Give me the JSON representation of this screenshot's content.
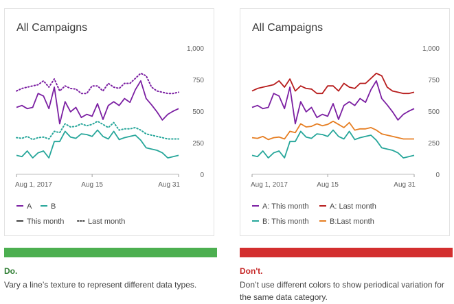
{
  "chart_data": [
    {
      "type": "line",
      "title": "All Campaigns",
      "x_tick_labels": [
        "Aug 1, 2017",
        "Aug 15",
        "Aug 31"
      ],
      "x_tick_days": [
        1,
        15,
        31
      ],
      "y_ticks": [
        0,
        250,
        500,
        750,
        1000
      ],
      "y_tick_labels": [
        "0",
        "250",
        "500",
        "750",
        "1,000"
      ],
      "ylim": [
        0,
        1000
      ],
      "xlim": [
        1,
        31
      ],
      "grid": false,
      "x": [
        1,
        2,
        3,
        4,
        5,
        6,
        7,
        8,
        9,
        10,
        11,
        12,
        13,
        14,
        15,
        16,
        17,
        18,
        19,
        20,
        21,
        22,
        23,
        24,
        25,
        26,
        27,
        28,
        29,
        30,
        31
      ],
      "legend_rows": [
        [
          {
            "label": "A",
            "color": "#7b1fa2",
            "dash": "solid"
          },
          {
            "label": "B",
            "color": "#26a69a",
            "dash": "solid"
          }
        ],
        [
          {
            "label": "This month",
            "color": "#424242",
            "dash": "solid"
          },
          {
            "label": "Last month",
            "color": "#424242",
            "dash": "dotted"
          }
        ]
      ],
      "series": [
        {
          "name": "A: This month",
          "color": "#7b1fa2",
          "dash": "solid",
          "values": [
            530,
            545,
            520,
            530,
            640,
            620,
            520,
            690,
            400,
            575,
            495,
            530,
            450,
            475,
            460,
            560,
            435,
            545,
            575,
            545,
            600,
            570,
            670,
            740,
            600,
            550,
            495,
            430,
            475,
            500,
            520
          ]
        },
        {
          "name": "A: Last month",
          "color": "#7b1fa2",
          "dash": "dotted",
          "values": [
            660,
            680,
            690,
            700,
            710,
            740,
            690,
            755,
            660,
            700,
            680,
            675,
            640,
            640,
            700,
            700,
            660,
            720,
            690,
            680,
            720,
            720,
            760,
            800,
            780,
            690,
            660,
            650,
            640,
            640,
            650
          ]
        },
        {
          "name": "B: This month",
          "color": "#26a69a",
          "dash": "solid",
          "values": [
            150,
            140,
            185,
            130,
            170,
            185,
            130,
            260,
            260,
            340,
            295,
            285,
            320,
            315,
            300,
            350,
            300,
            280,
            340,
            275,
            290,
            300,
            310,
            270,
            210,
            200,
            190,
            170,
            130,
            140,
            150
          ]
        },
        {
          "name": "B: Last month",
          "color": "#26a69a",
          "dash": "dotted",
          "values": [
            290,
            285,
            300,
            275,
            290,
            295,
            280,
            340,
            330,
            400,
            375,
            380,
            400,
            385,
            395,
            420,
            395,
            370,
            410,
            350,
            360,
            360,
            370,
            350,
            320,
            310,
            300,
            290,
            280,
            280,
            280
          ]
        }
      ]
    },
    {
      "type": "line",
      "title": "All Campaigns",
      "x_tick_labels": [
        "Aug 1, 2017",
        "Aug 15",
        "Aug 31"
      ],
      "x_tick_days": [
        1,
        15,
        31
      ],
      "y_ticks": [
        0,
        250,
        500,
        750,
        1000
      ],
      "y_tick_labels": [
        "0",
        "250",
        "500",
        "750",
        "1,000"
      ],
      "ylim": [
        0,
        1000
      ],
      "xlim": [
        1,
        31
      ],
      "grid": false,
      "x": [
        1,
        2,
        3,
        4,
        5,
        6,
        7,
        8,
        9,
        10,
        11,
        12,
        13,
        14,
        15,
        16,
        17,
        18,
        19,
        20,
        21,
        22,
        23,
        24,
        25,
        26,
        27,
        28,
        29,
        30,
        31
      ],
      "legend_rows": [
        [
          {
            "label": "A: This month",
            "color": "#7b1fa2",
            "dash": "solid"
          },
          {
            "label": "A: Last month",
            "color": "#b71c1c",
            "dash": "solid"
          }
        ],
        [
          {
            "label": "B: This month",
            "color": "#26a69a",
            "dash": "solid"
          },
          {
            "label": "B:Last month",
            "color": "#e67e22",
            "dash": "solid"
          }
        ]
      ],
      "series": [
        {
          "name": "A: This month",
          "color": "#7b1fa2",
          "dash": "solid",
          "values": [
            530,
            545,
            520,
            530,
            640,
            620,
            520,
            690,
            400,
            575,
            495,
            530,
            450,
            475,
            460,
            560,
            435,
            545,
            575,
            545,
            600,
            570,
            670,
            740,
            600,
            550,
            495,
            430,
            475,
            500,
            520
          ]
        },
        {
          "name": "A: Last month",
          "color": "#b71c1c",
          "dash": "solid",
          "values": [
            660,
            680,
            690,
            700,
            710,
            740,
            690,
            755,
            660,
            700,
            680,
            675,
            640,
            640,
            700,
            700,
            660,
            720,
            690,
            680,
            720,
            720,
            760,
            800,
            780,
            690,
            660,
            650,
            640,
            640,
            650
          ]
        },
        {
          "name": "B: This month",
          "color": "#26a69a",
          "dash": "solid",
          "values": [
            150,
            140,
            185,
            130,
            170,
            185,
            130,
            260,
            260,
            340,
            295,
            285,
            320,
            315,
            300,
            350,
            300,
            280,
            340,
            275,
            290,
            300,
            310,
            270,
            210,
            200,
            190,
            170,
            130,
            140,
            150
          ]
        },
        {
          "name": "B:Last month",
          "color": "#e67e22",
          "dash": "solid",
          "values": [
            290,
            285,
            300,
            275,
            290,
            295,
            280,
            340,
            330,
            400,
            375,
            380,
            400,
            385,
            395,
            420,
            395,
            370,
            410,
            350,
            360,
            360,
            370,
            350,
            320,
            310,
            300,
            290,
            280,
            280,
            280
          ]
        }
      ]
    }
  ],
  "panels": {
    "do": {
      "bar_color": "#4caf50",
      "verdict": "Do.",
      "caption": "Vary a line’s texture to represent different data types."
    },
    "dont": {
      "bar_color": "#d32f2f",
      "verdict": "Don't.",
      "caption": "Don’t use different colors to show periodical variation for the same data category."
    }
  }
}
